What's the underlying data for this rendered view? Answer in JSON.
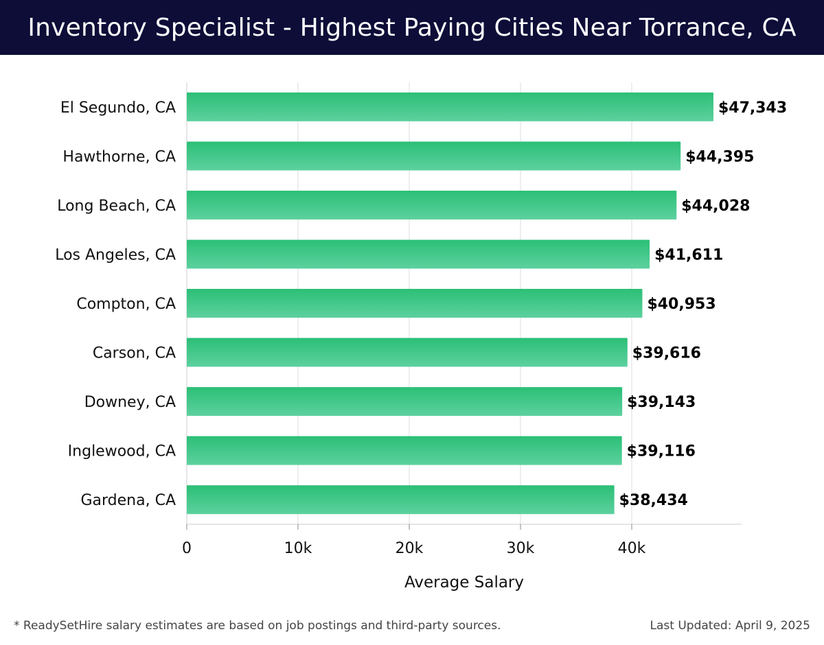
{
  "colors": {
    "header_bg": "#0d0d38",
    "bar_top": "#2bbf76",
    "bar_bottom": "#5dd19f",
    "grid": "#dddddd"
  },
  "chart_data": {
    "type": "bar",
    "orientation": "horizontal",
    "title": "Inventory Specialist - Highest Paying Cities Near Torrance, CA",
    "xlabel": "Average Salary",
    "ylabel": "",
    "xlim": [
      0,
      50000
    ],
    "xticks": [
      0,
      10000,
      20000,
      30000,
      40000
    ],
    "xtick_labels": [
      "0",
      "10k",
      "20k",
      "30k",
      "40k"
    ],
    "grid": true,
    "categories": [
      "El Segundo, CA",
      "Hawthorne, CA",
      "Long Beach, CA",
      "Los Angeles, CA",
      "Compton, CA",
      "Carson, CA",
      "Downey, CA",
      "Inglewood, CA",
      "Gardena, CA"
    ],
    "values": [
      47343,
      44395,
      44028,
      41611,
      40953,
      39616,
      39143,
      39116,
      38434
    ],
    "value_labels": [
      "$47,343",
      "$44,395",
      "$44,028",
      "$41,611",
      "$40,953",
      "$39,616",
      "$39,143",
      "$39,116",
      "$38,434"
    ]
  },
  "footer": {
    "note": "* ReadySetHire salary estimates are based on job postings and third-party sources.",
    "updated": "Last Updated: April 9, 2025"
  }
}
